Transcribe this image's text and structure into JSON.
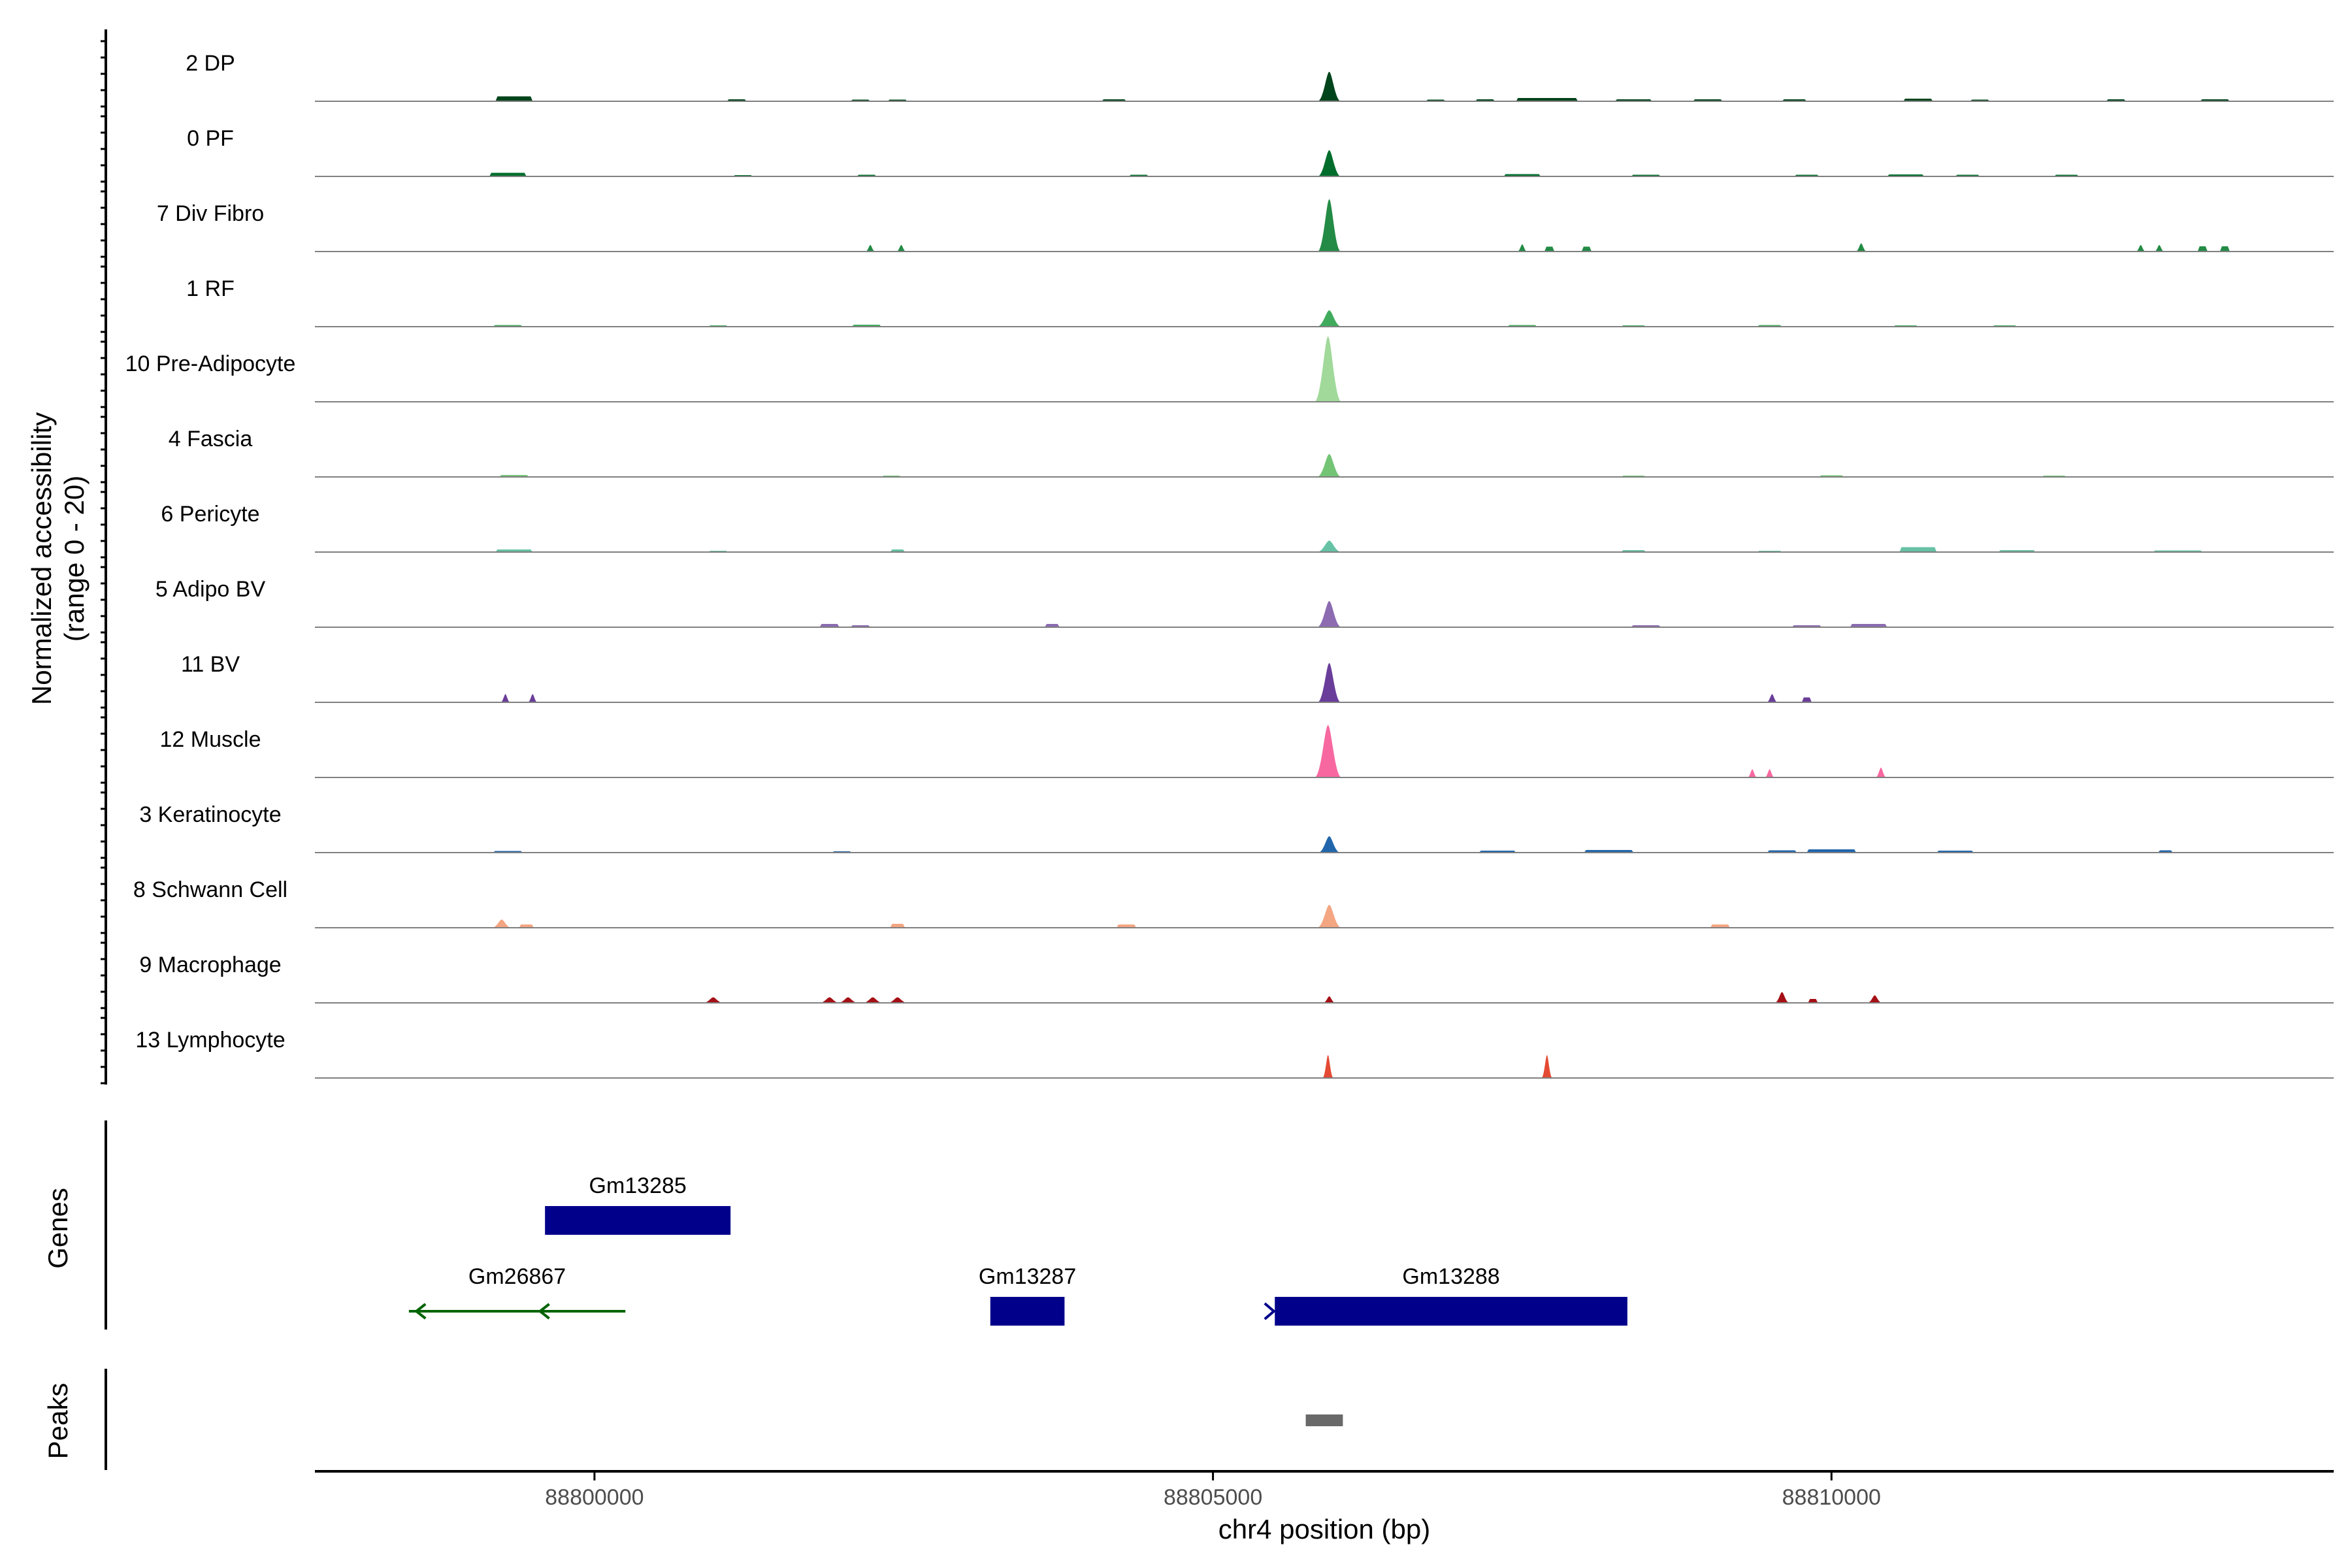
{
  "chart_data": {
    "type": "area",
    "chromosome": "chr4",
    "xlabel": "chr4 position (bp)",
    "ylabel_line1": "Normalized accessibility",
    "ylabel_line2": "(range 0 - 20)",
    "y_range": [
      0,
      20
    ],
    "xlim": [
      88797740,
      88814060
    ],
    "x_ticks": [
      {
        "value": 88800000,
        "label": "88800000"
      },
      {
        "value": 88805000,
        "label": "88805000"
      },
      {
        "value": 88810000,
        "label": "88810000"
      }
    ],
    "tracks": [
      {
        "name": "2 DP",
        "color": "#00441b",
        "peaks": [
          [
            88799350,
            1.5,
            150
          ],
          [
            88801150,
            0.6,
            80
          ],
          [
            88802150,
            0.5,
            80
          ],
          [
            88802450,
            0.5,
            80
          ],
          [
            88804200,
            0.6,
            100
          ],
          [
            88805940,
            9.0,
            95
          ],
          [
            88806800,
            0.5,
            80
          ],
          [
            88807200,
            0.6,
            80
          ],
          [
            88807700,
            1.0,
            250
          ],
          [
            88808400,
            0.6,
            150
          ],
          [
            88809000,
            0.6,
            120
          ],
          [
            88809700,
            0.6,
            100
          ],
          [
            88810700,
            0.8,
            120
          ],
          [
            88811200,
            0.5,
            80
          ],
          [
            88812300,
            0.6,
            80
          ],
          [
            88813100,
            0.6,
            120
          ]
        ]
      },
      {
        "name": "0 PF",
        "color": "#006d2c",
        "peaks": [
          [
            88799300,
            1.1,
            150
          ],
          [
            88801200,
            0.4,
            80
          ],
          [
            88802200,
            0.5,
            80
          ],
          [
            88804400,
            0.5,
            80
          ],
          [
            88805940,
            8.0,
            95
          ],
          [
            88807500,
            0.7,
            150
          ],
          [
            88808500,
            0.5,
            120
          ],
          [
            88809800,
            0.5,
            100
          ],
          [
            88810600,
            0.6,
            150
          ],
          [
            88811100,
            0.5,
            100
          ],
          [
            88811900,
            0.5,
            100
          ]
        ]
      },
      {
        "name": "7 Div Fibro",
        "color": "#238b45",
        "peaks": [
          [
            88802230,
            2.0,
            40
          ],
          [
            88802480,
            2.0,
            40
          ],
          [
            88805940,
            16.0,
            95
          ],
          [
            88807500,
            2.2,
            40
          ],
          [
            88807720,
            1.5,
            40
          ],
          [
            88808020,
            1.5,
            40
          ],
          [
            88810240,
            2.5,
            45
          ],
          [
            88812500,
            2.0,
            40
          ],
          [
            88812650,
            2.0,
            40
          ],
          [
            88813000,
            1.6,
            40
          ],
          [
            88813180,
            1.6,
            40
          ]
        ]
      },
      {
        "name": "1 RF",
        "color": "#41ab5d",
        "peaks": [
          [
            88799300,
            0.5,
            120
          ],
          [
            88801000,
            0.4,
            80
          ],
          [
            88802200,
            0.6,
            120
          ],
          [
            88805940,
            5.0,
            100
          ],
          [
            88807500,
            0.5,
            120
          ],
          [
            88808400,
            0.4,
            100
          ],
          [
            88809500,
            0.5,
            100
          ],
          [
            88810600,
            0.4,
            100
          ],
          [
            88811400,
            0.4,
            100
          ]
        ]
      },
      {
        "name": "10 Pre-Adipocyte",
        "color": "#a1d99b",
        "peaks": [
          [
            88805930,
            20.0,
            110
          ]
        ]
      },
      {
        "name": "4 Fascia",
        "color": "#74c476",
        "peaks": [
          [
            88799350,
            0.6,
            120
          ],
          [
            88802400,
            0.4,
            80
          ],
          [
            88805940,
            7.0,
            100
          ],
          [
            88808400,
            0.4,
            100
          ],
          [
            88810000,
            0.5,
            100
          ],
          [
            88811800,
            0.4,
            100
          ]
        ]
      },
      {
        "name": "6 Pericyte",
        "color": "#66c2a4",
        "peaks": [
          [
            88799350,
            0.8,
            150
          ],
          [
            88801000,
            0.4,
            80
          ],
          [
            88802450,
            0.8,
            60
          ],
          [
            88805940,
            3.5,
            100
          ],
          [
            88808400,
            0.6,
            100
          ],
          [
            88809500,
            0.4,
            100
          ],
          [
            88810700,
            1.5,
            150
          ],
          [
            88811500,
            0.6,
            150
          ],
          [
            88812800,
            0.5,
            200
          ]
        ]
      },
      {
        "name": "5 Adipo BV",
        "color": "#8c6bb1",
        "peaks": [
          [
            88801900,
            1.0,
            80
          ],
          [
            88802150,
            0.6,
            80
          ],
          [
            88803700,
            1.0,
            60
          ],
          [
            88805940,
            8.0,
            100
          ],
          [
            88808500,
            0.6,
            120
          ],
          [
            88809800,
            0.6,
            120
          ],
          [
            88810300,
            1.0,
            150
          ]
        ]
      },
      {
        "name": "11 BV",
        "color": "#6a3d9a",
        "peaks": [
          [
            88799280,
            2.5,
            40
          ],
          [
            88799500,
            2.5,
            40
          ],
          [
            88805940,
            12.0,
            95
          ],
          [
            88809520,
            2.5,
            45
          ],
          [
            88809800,
            1.5,
            40
          ]
        ]
      },
      {
        "name": "12 Muscle",
        "color": "#f768a1",
        "peaks": [
          [
            88805930,
            16.0,
            110
          ],
          [
            88809360,
            2.5,
            40
          ],
          [
            88809500,
            2.5,
            40
          ],
          [
            88810400,
            3.0,
            45
          ]
        ]
      },
      {
        "name": "3 Keratinocyte",
        "color": "#2166ac",
        "peaks": [
          [
            88799300,
            0.5,
            120
          ],
          [
            88802000,
            0.4,
            80
          ],
          [
            88805940,
            5.0,
            90
          ],
          [
            88807300,
            0.6,
            150
          ],
          [
            88808200,
            0.8,
            200
          ],
          [
            88809600,
            0.7,
            120
          ],
          [
            88810000,
            1.0,
            200
          ],
          [
            88811000,
            0.6,
            150
          ],
          [
            88812700,
            0.7,
            60
          ]
        ]
      },
      {
        "name": "8 Schwann Cell",
        "color": "#f4a582",
        "peaks": [
          [
            88799250,
            2.5,
            80
          ],
          [
            88799450,
            1.0,
            60
          ],
          [
            88802450,
            1.2,
            60
          ],
          [
            88804300,
            1.0,
            80
          ],
          [
            88805940,
            7.0,
            100
          ],
          [
            88809100,
            1.0,
            80
          ]
        ]
      },
      {
        "name": "9 Macrophage",
        "color": "#a50f15",
        "peaks": [
          [
            88800960,
            1.7,
            80
          ],
          [
            88801900,
            1.7,
            80
          ],
          [
            88802050,
            1.7,
            80
          ],
          [
            88802250,
            1.7,
            80
          ],
          [
            88802450,
            1.7,
            80
          ],
          [
            88805940,
            2.0,
            50
          ],
          [
            88809600,
            3.3,
            60
          ],
          [
            88809850,
            1.2,
            40
          ],
          [
            88810350,
            2.3,
            60
          ]
        ]
      },
      {
        "name": "13 Lymphocyte",
        "color": "#e34a33",
        "peaks": [
          [
            88805930,
            7.0,
            45
          ],
          [
            88807700,
            7.0,
            45
          ]
        ]
      }
    ],
    "genes": [
      {
        "name": "Gm13285",
        "start": 88799600,
        "end": 88801100,
        "strand": "+",
        "color": "#00008b",
        "row": 0,
        "arrow_at": [
          88799650
        ]
      },
      {
        "name": "Gm26867",
        "start": 88798500,
        "end": 88800250,
        "strand": "-",
        "color": "#006400",
        "row": 1,
        "arrow_at": [
          88798560,
          88799560
        ]
      },
      {
        "name": "Gm13287",
        "start": 88803200,
        "end": 88803800,
        "strand": "+",
        "color": "#00008b",
        "row": 1,
        "arrow_at": []
      },
      {
        "name": "Gm13288",
        "start": 88805500,
        "end": 88808350,
        "strand": "+",
        "color": "#00008b",
        "row": 1,
        "arrow_at": [
          88805450
        ]
      }
    ],
    "genes_label": "Genes",
    "peaks_label": "Peaks",
    "peak_regions": [
      {
        "start": 88805750,
        "end": 88806050,
        "color": "#696969"
      }
    ]
  }
}
